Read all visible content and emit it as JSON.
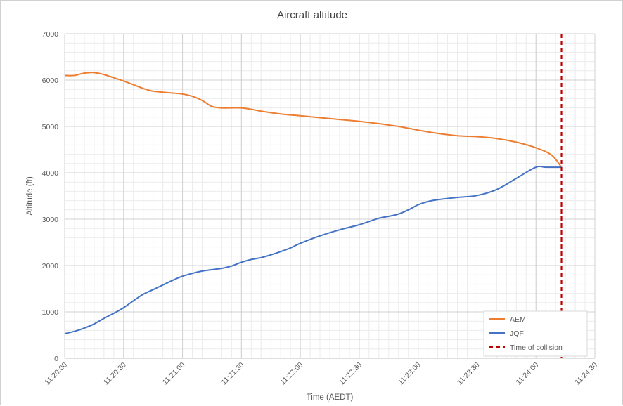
{
  "chart_data": {
    "type": "line",
    "title": "Aircraft altitude",
    "xlabel": "Time (AEDT)",
    "ylabel": "Altitude (ft)",
    "ylim": [
      0,
      7000
    ],
    "xlim": [
      "11:20:00",
      "11:24:30"
    ],
    "x_ticks": [
      "11:20:00",
      "11:20:30",
      "11:21:00",
      "11:21:30",
      "11:22:00",
      "11:22:30",
      "11:23:00",
      "11:23:30",
      "11:24:00",
      "11:24:30"
    ],
    "y_ticks": [
      "0",
      "1000",
      "2000",
      "3000",
      "4000",
      "5000",
      "6000",
      "7000"
    ],
    "grid": true,
    "legend_position": "bottom-right",
    "series": [
      {
        "name": "AEM",
        "color": "#ED7D31",
        "style": "solid",
        "x": [
          "11:20:00",
          "11:20:05",
          "11:20:10",
          "11:20:15",
          "11:20:20",
          "11:20:25",
          "11:20:30",
          "11:20:35",
          "11:20:40",
          "11:20:45",
          "11:20:50",
          "11:20:55",
          "11:21:00",
          "11:21:05",
          "11:21:10",
          "11:21:15",
          "11:21:20",
          "11:21:25",
          "11:21:30",
          "11:21:35",
          "11:21:40",
          "11:21:50",
          "11:22:00",
          "11:22:10",
          "11:22:20",
          "11:22:30",
          "11:22:40",
          "11:22:50",
          "11:23:00",
          "11:23:10",
          "11:23:20",
          "11:23:30",
          "11:23:40",
          "11:23:50",
          "11:24:00",
          "11:24:08",
          "11:24:13"
        ],
        "values": [
          6100,
          6100,
          6150,
          6160,
          6120,
          6050,
          5980,
          5900,
          5820,
          5760,
          5740,
          5720,
          5700,
          5650,
          5560,
          5430,
          5400,
          5400,
          5400,
          5370,
          5330,
          5270,
          5230,
          5190,
          5150,
          5110,
          5060,
          5000,
          4920,
          4850,
          4800,
          4780,
          4740,
          4660,
          4540,
          4380,
          4120
        ]
      },
      {
        "name": "JQF",
        "color": "#4472C4",
        "style": "solid",
        "x": [
          "11:20:00",
          "11:20:05",
          "11:20:10",
          "11:20:15",
          "11:20:20",
          "11:20:25",
          "11:20:30",
          "11:20:35",
          "11:20:40",
          "11:20:45",
          "11:20:50",
          "11:20:55",
          "11:21:00",
          "11:21:05",
          "11:21:10",
          "11:21:15",
          "11:21:20",
          "11:21:25",
          "11:21:30",
          "11:21:35",
          "11:21:40",
          "11:21:45",
          "11:21:50",
          "11:21:55",
          "11:22:00",
          "11:22:10",
          "11:22:20",
          "11:22:30",
          "11:22:40",
          "11:22:45",
          "11:22:50",
          "11:22:55",
          "11:23:00",
          "11:23:05",
          "11:23:10",
          "11:23:20",
          "11:23:30",
          "11:23:40",
          "11:23:50",
          "11:24:00",
          "11:24:05",
          "11:24:13"
        ],
        "values": [
          530,
          580,
          650,
          740,
          860,
          970,
          1090,
          1240,
          1380,
          1480,
          1580,
          1680,
          1770,
          1830,
          1880,
          1910,
          1940,
          1990,
          2070,
          2130,
          2170,
          2230,
          2300,
          2380,
          2480,
          2640,
          2770,
          2880,
          3020,
          3060,
          3110,
          3200,
          3310,
          3380,
          3420,
          3470,
          3510,
          3640,
          3880,
          4120,
          4120,
          4120
        ]
      }
    ],
    "markers": [
      {
        "name": "Time of collision",
        "type": "vertical-line",
        "x": "11:24:13",
        "color": "#C00000",
        "style": "dashed"
      }
    ]
  }
}
